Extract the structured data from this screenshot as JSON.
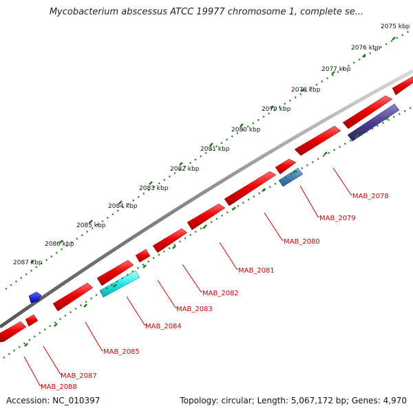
{
  "title": "Mycobacterium abscessus ATCC 19977 chromosome 1, complete se...",
  "footer": {
    "accession": "Accession: NC_010397",
    "summary": "Topology: circular; Length: 5,067,172 bp; Genes: 4,970"
  },
  "colors": {
    "backbone": "#8a8a8a",
    "cds": "#ee0000",
    "tick": "#1f7a1f",
    "label": "#d00000"
  },
  "scale_labels": [
    "2075 kbp",
    "2076 kbp",
    "2077 kbp",
    "2078 kbp",
    "2079 kbp",
    "2080 kbp",
    "2081 kbp",
    "2082 kbp",
    "2083 kbp",
    "2084 kbp",
    "2085 kbp",
    "2086 kbp",
    "2087 kbp"
  ],
  "gene_labels": [
    "MAB_2078",
    "MAB_2079",
    "MAB_2080",
    "MAB_2081",
    "MAB_2082",
    "MAB_2083",
    "MAB_2084",
    "MAB_2085",
    "MAB_2087",
    "MAB_2088"
  ]
}
